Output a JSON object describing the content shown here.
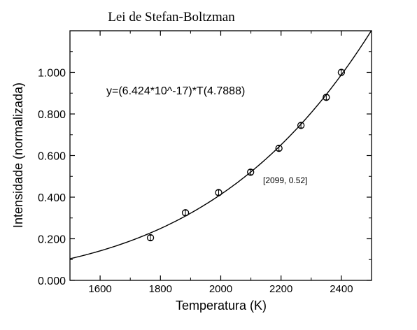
{
  "chart_data": {
    "type": "scatter",
    "title": "Lei de Stefan-Boltzman",
    "xlabel": "Temperatura (K)",
    "ylabel": "Intensidade (normalizada)",
    "xlim": [
      1500,
      2500
    ],
    "ylim": [
      0.0,
      1.2
    ],
    "x_ticks": [
      1600,
      1800,
      2000,
      2200,
      2400
    ],
    "x_tick_labels": [
      "1600",
      "1800",
      "2000",
      "2200",
      "2400"
    ],
    "y_ticks": [
      0.0,
      0.2,
      0.4,
      0.6,
      0.8,
      1.0
    ],
    "y_tick_labels": [
      "0.000",
      "0.200",
      "0.400",
      "0.600",
      "0.800",
      "1.000"
    ],
    "grid": false,
    "points": {
      "x": [
        1767,
        1883,
        1993,
        2099,
        2193,
        2266,
        2350,
        2400
      ],
      "y": [
        0.205,
        0.325,
        0.422,
        0.52,
        0.635,
        0.745,
        0.88,
        1.0
      ],
      "yerr": 0.012,
      "marker": "open-circle"
    },
    "fit": {
      "equation_label": "y=(6.424*10^-17)*T(4.7888)",
      "coefficient": 6.424e-17,
      "exponent": 4.7888
    },
    "annotation": "[2099, 0.52]",
    "colors": {
      "line": "#000000",
      "background": "#ffffff"
    }
  }
}
